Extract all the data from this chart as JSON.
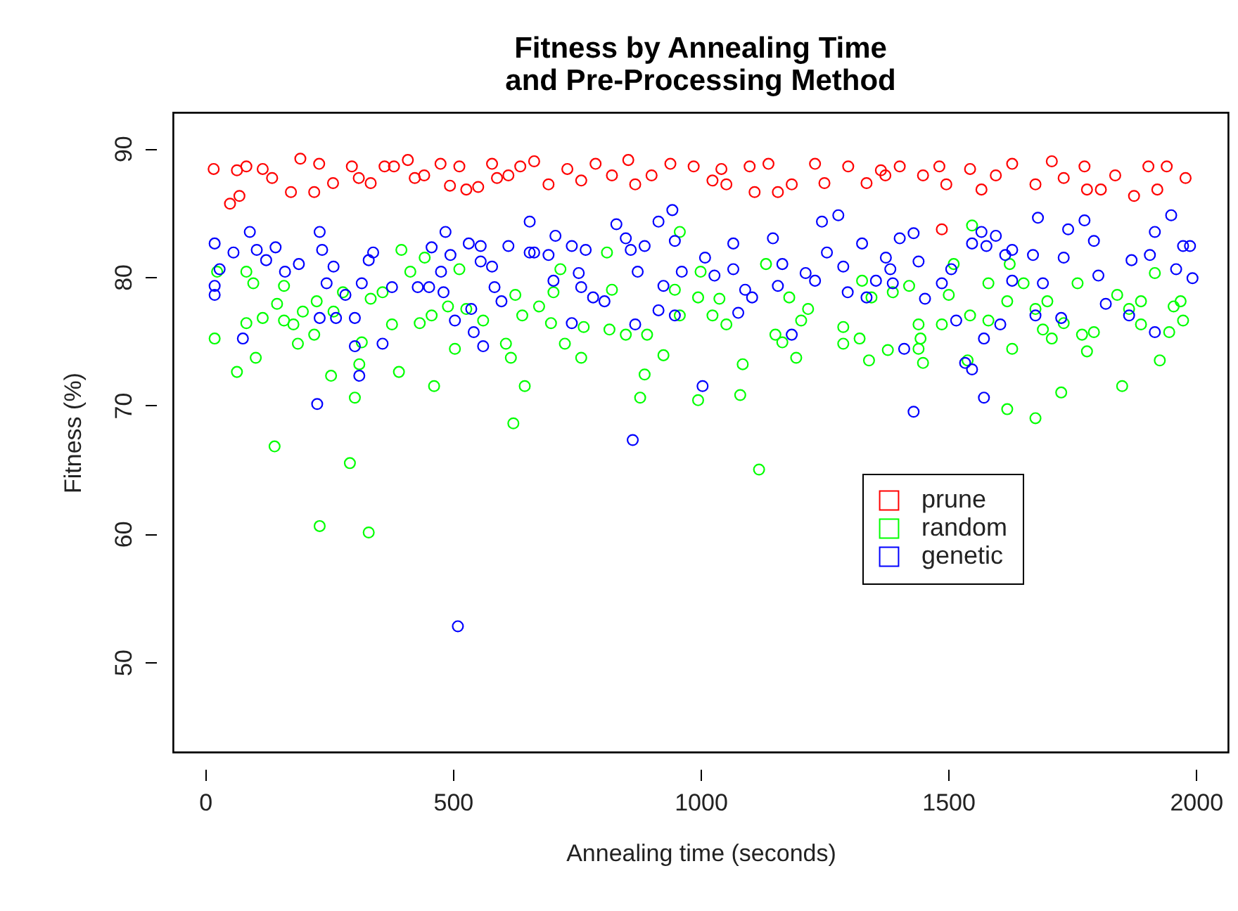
{
  "chart_data": {
    "type": "scatter",
    "title": "Fitness by Annealing Time\nand Pre-Processing Method",
    "xlabel": "Annealing time (seconds)",
    "ylabel": "Fitness (%)",
    "xlim": [
      -65,
      2065
    ],
    "ylim": [
      43,
      92.8
    ],
    "xticks": [
      0,
      500,
      1000,
      1500,
      2000
    ],
    "yticks": [
      50,
      60,
      70,
      80,
      90
    ],
    "grid": false,
    "legend": "right",
    "marker": "circle",
    "series": [
      {
        "name": "prune",
        "color": "#ff0000",
        "x": [
          17,
          50,
          69,
          64,
          83,
          116,
          135,
          173,
          192,
          220,
          230,
          258,
          296,
          310,
          334,
          362,
          381,
          409,
          423,
          442,
          475,
          494,
          513,
          527,
          551,
          579,
          589,
          612,
          636,
          664,
          693,
          731,
          759,
          788,
          821,
          854,
          868,
          901,
          939,
          986,
          1024,
          1042,
          1052,
          1099,
          1109,
          1137,
          1156,
          1184,
          1231,
          1250,
          1298,
          1335,
          1364,
          1373,
          1402,
          1449,
          1482,
          1496,
          1544,
          1567,
          1596,
          1629,
          1676,
          1709,
          1733,
          1775,
          1780,
          1808,
          1837,
          1875,
          1904,
          1922,
          1941,
          1979,
          1487
        ],
        "values": [
          88.4,
          85.7,
          86.3,
          88.3,
          88.6,
          88.4,
          87.7,
          86.6,
          89.2,
          86.6,
          88.8,
          87.3,
          88.6,
          87.7,
          87.3,
          88.6,
          88.6,
          89.1,
          87.7,
          87.9,
          88.8,
          87.1,
          88.6,
          86.8,
          87.0,
          88.8,
          87.7,
          87.9,
          88.6,
          89.0,
          87.2,
          88.4,
          87.5,
          88.8,
          87.9,
          89.1,
          87.2,
          87.9,
          88.8,
          88.6,
          87.5,
          88.4,
          87.2,
          88.6,
          86.6,
          88.8,
          86.6,
          87.2,
          88.8,
          87.3,
          88.6,
          87.3,
          88.3,
          87.9,
          88.6,
          87.9,
          88.6,
          87.2,
          88.4,
          86.8,
          87.9,
          88.8,
          87.2,
          89.0,
          87.7,
          88.6,
          86.8,
          86.8,
          87.9,
          86.3,
          88.6,
          86.8,
          88.6,
          87.7,
          83.7
        ]
      },
      {
        "name": "random",
        "color": "#00ff00",
        "x": [
          19,
          24,
          64,
          83,
          83,
          97,
          102,
          116,
          140,
          145,
          159,
          159,
          178,
          187,
          197,
          220,
          225,
          231,
          254,
          259,
          278,
          292,
          302,
          311,
          316,
          330,
          334,
          358,
          377,
          391,
          396,
          414,
          433,
          443,
          462,
          457,
          490,
          504,
          513,
          527,
          561,
          607,
          617,
          622,
          626,
          640,
          645,
          674,
          698,
          703,
          717,
          726,
          759,
          764,
          811,
          816,
          821,
          849,
          887,
          878,
          892,
          925,
          958,
          948,
          958,
          995,
          1000,
          995,
          1024,
          1038,
          1052,
          1085,
          1080,
          1118,
          1132,
          1151,
          1165,
          1179,
          1203,
          1217,
          1193,
          1288,
          1288,
          1321,
          1326,
          1340,
          1345,
          1388,
          1421,
          1440,
          1444,
          1440,
          1449,
          1378,
          1487,
          1501,
          1511,
          1544,
          1548,
          1539,
          1581,
          1581,
          1619,
          1624,
          1629,
          1619,
          1652,
          1676,
          1676,
          1691,
          1700,
          1709,
          1728,
          1733,
          1761,
          1770,
          1780,
          1794,
          1841,
          1851,
          1865,
          1889,
          1889,
          1917,
          1927,
          1946,
          1955,
          1969,
          1974
        ],
        "values": [
          75.2,
          80.4,
          72.6,
          80.4,
          76.4,
          79.5,
          73.7,
          76.8,
          66.8,
          77.9,
          79.3,
          76.6,
          76.3,
          74.8,
          77.3,
          75.5,
          78.1,
          60.6,
          72.3,
          77.3,
          78.8,
          65.5,
          70.6,
          73.2,
          74.9,
          60.1,
          78.3,
          78.8,
          76.3,
          72.6,
          82.1,
          80.4,
          76.4,
          81.5,
          71.5,
          77.0,
          77.7,
          74.4,
          80.6,
          77.5,
          76.6,
          74.8,
          73.7,
          68.6,
          78.6,
          77.0,
          71.5,
          77.7,
          76.4,
          78.8,
          80.6,
          74.8,
          73.7,
          76.1,
          81.9,
          75.9,
          79.0,
          75.5,
          72.4,
          70.6,
          75.5,
          73.9,
          83.5,
          79.0,
          77.0,
          78.4,
          80.4,
          70.4,
          77.0,
          78.3,
          76.3,
          73.2,
          70.8,
          65.0,
          81.0,
          75.5,
          74.9,
          78.4,
          76.6,
          77.5,
          73.7,
          76.1,
          74.8,
          75.2,
          79.7,
          73.5,
          78.4,
          78.8,
          79.3,
          76.3,
          75.2,
          74.4,
          73.3,
          74.3,
          76.3,
          78.6,
          81.0,
          77.0,
          84.0,
          73.5,
          79.5,
          76.6,
          78.1,
          81.0,
          74.4,
          69.7,
          79.5,
          77.5,
          69.0,
          75.9,
          78.1,
          75.2,
          71.0,
          76.4,
          79.5,
          75.5,
          74.2,
          75.7,
          78.6,
          71.5,
          77.5,
          78.1,
          76.3,
          80.3,
          73.5,
          75.7,
          77.7,
          78.1,
          76.6
        ]
      },
      {
        "name": "genetic",
        "color": "#0000ff",
        "x": [
          19,
          19,
          19,
          29,
          57,
          76,
          90,
          104,
          123,
          142,
          161,
          189,
          231,
          236,
          231,
          226,
          245,
          259,
          264,
          283,
          302,
          302,
          311,
          316,
          330,
          339,
          358,
          377,
          429,
          452,
          457,
          485,
          476,
          495,
          481,
          504,
          532,
          537,
          542,
          556,
          556,
          561,
          579,
          584,
          598,
          612,
          655,
          655,
          707,
          664,
          693,
          703,
          740,
          754,
          768,
          759,
          783,
          740,
          806,
          830,
          849,
          859,
          887,
          873,
          868,
          863,
          915,
          943,
          948,
          925,
          962,
          915,
          948,
          1009,
          1028,
          1066,
          1066,
          1090,
          1104,
          1076,
          1004,
          1146,
          1165,
          1156,
          1184,
          1212,
          1231,
          1255,
          1245,
          1278,
          1288,
          1297,
          1326,
          1335,
          1354,
          1374,
          1383,
          1388,
          1402,
          1430,
          1440,
          1453,
          1411,
          1430,
          1487,
          1506,
          1516,
          1534,
          1548,
          1548,
          1567,
          1577,
          1596,
          1615,
          1629,
          1572,
          1572,
          1605,
          1629,
          1681,
          1671,
          1676,
          1691,
          1728,
          1733,
          1742,
          1775,
          1794,
          1803,
          1818,
          1865,
          1870,
          1907,
          1917,
          1917,
          1950,
          1960,
          1974,
          1988,
          1993,
          510
        ],
        "values": [
          82.6,
          79.3,
          78.6,
          80.6,
          81.9,
          75.2,
          83.5,
          82.1,
          81.3,
          82.3,
          80.4,
          81.0,
          83.5,
          82.1,
          76.8,
          70.1,
          79.5,
          80.8,
          76.8,
          78.6,
          76.8,
          74.6,
          72.3,
          79.5,
          81.3,
          81.9,
          74.8,
          79.2,
          79.2,
          79.2,
          82.3,
          83.5,
          80.4,
          81.7,
          78.8,
          76.6,
          82.6,
          77.5,
          75.7,
          82.4,
          81.2,
          74.6,
          80.8,
          79.2,
          78.1,
          82.4,
          84.3,
          81.9,
          83.2,
          81.9,
          81.7,
          79.7,
          82.4,
          80.3,
          82.1,
          79.2,
          78.4,
          76.4,
          78.1,
          84.1,
          83.0,
          82.1,
          82.4,
          80.4,
          76.3,
          67.3,
          84.3,
          85.2,
          82.8,
          79.3,
          80.4,
          77.4,
          77.0,
          81.5,
          80.1,
          82.6,
          80.6,
          79.0,
          78.4,
          77.2,
          71.5,
          83.0,
          81.0,
          79.3,
          75.5,
          80.3,
          79.7,
          81.9,
          84.3,
          84.8,
          80.8,
          78.8,
          82.6,
          78.4,
          79.7,
          81.5,
          80.6,
          79.5,
          83.0,
          83.4,
          81.2,
          78.3,
          74.4,
          69.5,
          79.5,
          80.6,
          76.6,
          73.3,
          72.8,
          82.6,
          83.5,
          82.4,
          83.2,
          81.7,
          82.1,
          75.2,
          70.6,
          76.3,
          79.7,
          84.6,
          81.7,
          77.0,
          79.5,
          76.8,
          81.5,
          83.7,
          84.4,
          82.8,
          80.1,
          77.9,
          77.0,
          81.3,
          81.7,
          83.5,
          75.7,
          84.8,
          80.6,
          82.4,
          82.4,
          79.9,
          52.8
        ]
      }
    ]
  }
}
